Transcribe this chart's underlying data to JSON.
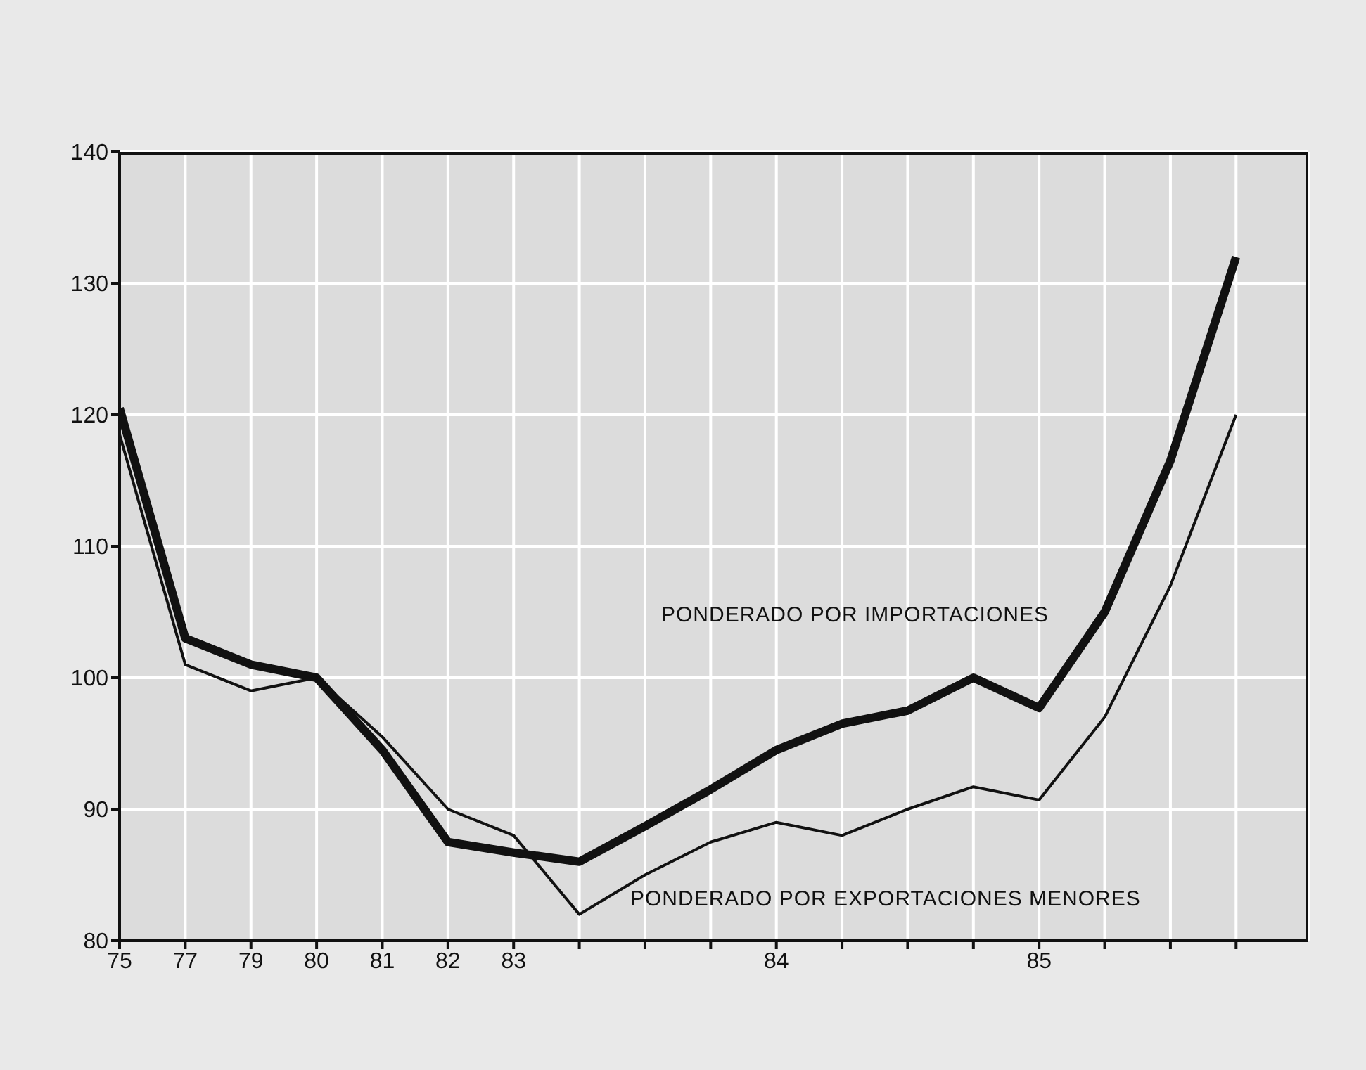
{
  "chart_data": {
    "type": "line",
    "categories": [
      "75",
      "77",
      "79",
      "80",
      "81",
      "82",
      "83",
      null,
      null,
      null,
      "84",
      null,
      null,
      null,
      "85",
      null,
      null,
      null
    ],
    "series": [
      {
        "name": "PONDERADO POR IMPORTACIONES",
        "color": "#111111",
        "values": [
          120.5,
          103,
          101,
          100,
          94.5,
          87.5,
          86.7,
          86,
          88.7,
          91.5,
          94.5,
          96.5,
          97.5,
          100,
          97.7,
          105,
          116.5,
          132
        ]
      },
      {
        "name": "PONDERADO POR EXPORTACIONES MENORES",
        "color": "#111111",
        "values": [
          118.5,
          101,
          99,
          100,
          95.5,
          90,
          88,
          82,
          85,
          87.5,
          89,
          88,
          90,
          91.7,
          90.7,
          97,
          107,
          120
        ]
      }
    ],
    "ylim": [
      80,
      140
    ],
    "yticks": [
      80,
      90,
      100,
      110,
      120,
      130,
      140
    ],
    "grid": true,
    "marker": "none",
    "line_style": "solid"
  }
}
